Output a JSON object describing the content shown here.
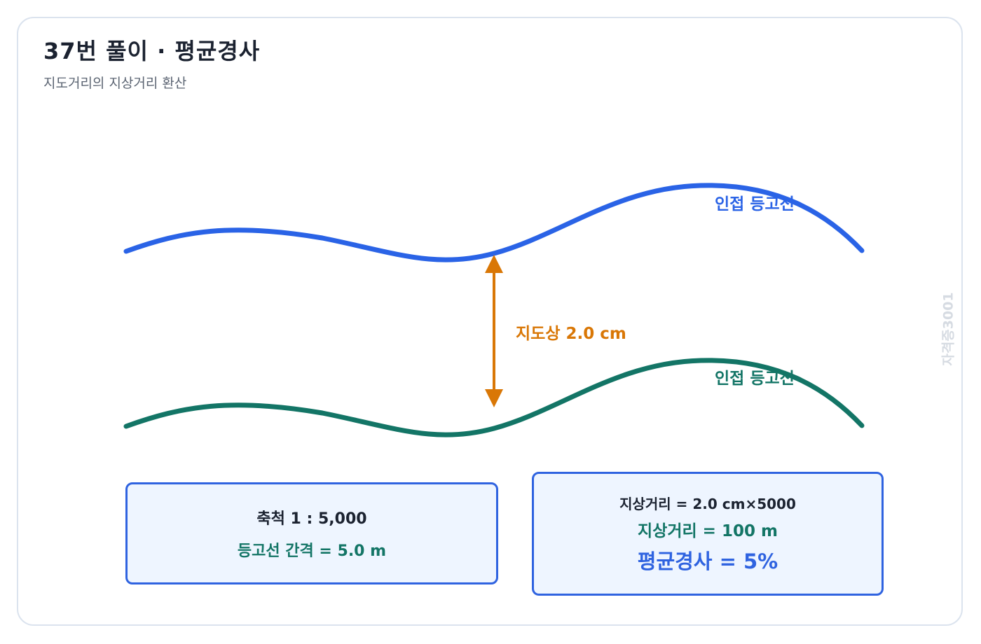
{
  "header": {
    "title": "37번 풀이 · 평균경사",
    "subtitle": "지도거리의 지상거리 환산"
  },
  "diagram": {
    "upper_contour_label": "인접 등고선",
    "lower_contour_label": "인접 등고선",
    "map_distance_label": "지도상 2.0 cm",
    "colors": {
      "upper_contour": "#2a63e6",
      "lower_contour": "#137566",
      "arrow": "#d97706"
    }
  },
  "info_left": {
    "scale": "축척 1 : 5,000",
    "contour_interval": "등고선 간격 = 5.0 m"
  },
  "info_right": {
    "formula": "지상거리 = 2.0 cm×5000",
    "ground_distance": "지상거리 = 100 m",
    "average_slope": "평균경사 = 5%"
  },
  "watermark": "자격증3001"
}
